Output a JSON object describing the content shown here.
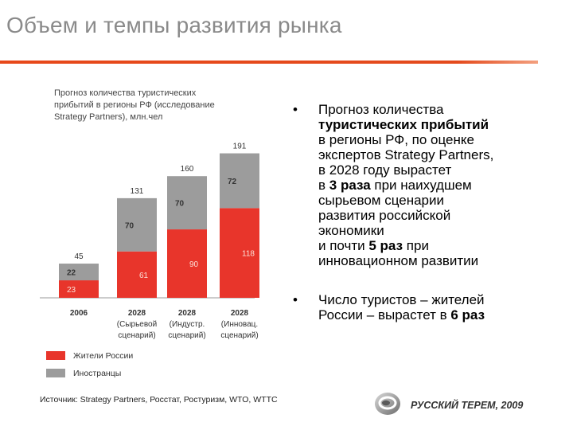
{
  "slide": {
    "title": "Объем и темпы развития рынка",
    "accent_color": "#e7481a"
  },
  "chart_data": {
    "type": "bar",
    "stacked": true,
    "title": "Прогноз количества туристических прибытий в регионы РФ (исследование Strategy Partners), млн.чел",
    "title_lines": [
      "Прогноз количества туристических",
      "прибытий в регионы РФ (исследование",
      "Strategy Partners), млн.чел"
    ],
    "categories": [
      [
        "2006"
      ],
      [
        "2028",
        "(Сырьевой",
        "сценарий)"
      ],
      [
        "2028",
        "(Индустр.",
        "сценарий)"
      ],
      [
        "2028",
        "(Инновац.",
        "сценарий)"
      ]
    ],
    "series": [
      {
        "name": "Жители России",
        "color": "#e8352b",
        "values": [
          23,
          61,
          90,
          118
        ]
      },
      {
        "name": "Иностранцы",
        "color": "#9c9c9c",
        "values": [
          22,
          70,
          70,
          72
        ]
      }
    ],
    "totals": [
      45,
      131,
      160,
      191
    ],
    "ylim": [
      0,
      200
    ],
    "legend_position": "bottom"
  },
  "bullets": [
    {
      "lines": [
        [
          {
            "t": "Прогноз количества"
          }
        ],
        [
          {
            "t": "туристических прибытий",
            "b": true
          }
        ],
        [
          {
            "t": "в регионы РФ, по оценке"
          }
        ],
        [
          {
            "t": "экспертов  Strategy Partners,"
          }
        ],
        [
          {
            "t": "в 2028 году вырастет"
          }
        ],
        [
          {
            "t": "в "
          },
          {
            "t": "3 раза",
            "b": true
          },
          {
            "t": " при наихудшем"
          }
        ],
        [
          {
            "t": "сырьевом сценарии"
          }
        ],
        [
          {
            "t": "развития  российской"
          }
        ],
        [
          {
            "t": "экономики"
          }
        ],
        [
          {
            "t": "и почти "
          },
          {
            "t": "5 раз",
            "b": true
          },
          {
            "t": " при"
          }
        ],
        [
          {
            "t": "инновационном развитии"
          }
        ]
      ]
    },
    {
      "lines": [
        [
          {
            "t": "Число туристов – жителей"
          }
        ],
        [
          {
            "t": "России – вырастет в "
          },
          {
            "t": "6 раз",
            "b": true
          }
        ]
      ]
    }
  ],
  "bullet_symbol": "•",
  "source": "Источник: Strategy Partners, Росстат, Ростуризм, WTO, WTTC",
  "brand": {
    "name": "РУССКИЙ ТЕРЕМ, 2009",
    "logo_icon": "swirl-logo-icon"
  }
}
